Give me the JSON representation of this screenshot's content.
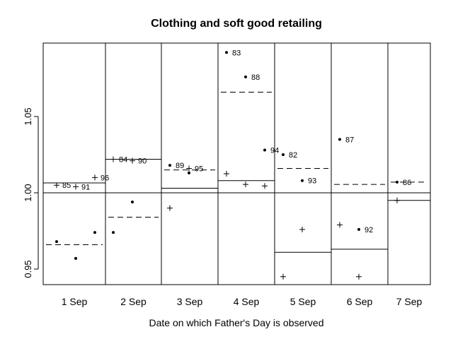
{
  "chart_data": {
    "type": "scatter",
    "title": "Clothing and soft good retailing",
    "xlabel": "Date on which Father's Day is observed",
    "ylabel": "",
    "ylim": [
      0.94,
      1.098
    ],
    "yticks": [
      "0.95",
      "1.00",
      "1.05"
    ],
    "ytick_values": [
      0.95,
      1.0,
      1.05
    ],
    "reference_line": 1.0,
    "grid": false,
    "groups": [
      {
        "label": "1 Sep",
        "dashed_mean": 0.966,
        "solid_mean": 1.0065,
        "points": [
          {
            "slot": 0,
            "marker": "dot",
            "value": 0.968,
            "year": ""
          },
          {
            "slot": 1,
            "marker": "dot",
            "value": 0.957,
            "year": ""
          },
          {
            "slot": 2,
            "marker": "dot",
            "value": 0.974,
            "year": ""
          },
          {
            "slot": 0,
            "marker": "plus",
            "value": 1.005,
            "year": "85"
          },
          {
            "slot": 1,
            "marker": "plus",
            "value": 1.004,
            "year": "91"
          },
          {
            "slot": 2,
            "marker": "plus",
            "value": 1.01,
            "year": "96"
          }
        ]
      },
      {
        "label": "2 Sep",
        "dashed_mean": 0.984,
        "solid_mean": 1.022,
        "points": [
          {
            "slot": 0,
            "marker": "plus",
            "value": 1.022,
            "year": "84"
          },
          {
            "slot": 1,
            "marker": "plus",
            "value": 1.021,
            "year": "90"
          },
          {
            "slot": 0,
            "marker": "dot",
            "value": 0.974,
            "year": ""
          },
          {
            "slot": 1,
            "marker": "dot",
            "value": 0.994,
            "year": ""
          }
        ]
      },
      {
        "label": "3 Sep",
        "dashed_mean": 1.015,
        "solid_mean": 1.003,
        "points": [
          {
            "slot": 0,
            "marker": "dot",
            "value": 1.018,
            "year": "89"
          },
          {
            "slot": 1,
            "marker": "plus",
            "value": 1.016,
            "year": "95"
          },
          {
            "slot": 1,
            "marker": "dot",
            "value": 1.013,
            "year": ""
          },
          {
            "slot": 0,
            "marker": "plus",
            "value": 0.99,
            "year": ""
          }
        ]
      },
      {
        "label": "4 Sep",
        "dashed_mean": 1.066,
        "solid_mean": 1.008,
        "points": [
          {
            "slot": 0,
            "marker": "dot",
            "value": 1.092,
            "year": "83"
          },
          {
            "slot": 1,
            "marker": "dot",
            "value": 1.076,
            "year": "88"
          },
          {
            "slot": 2,
            "marker": "dot",
            "value": 1.028,
            "year": "94"
          },
          {
            "slot": 0,
            "marker": "plus",
            "value": 1.0125,
            "year": ""
          },
          {
            "slot": 1,
            "marker": "plus",
            "value": 1.0055,
            "year": ""
          },
          {
            "slot": 2,
            "marker": "plus",
            "value": 1.0045,
            "year": ""
          }
        ]
      },
      {
        "label": "5 Sep",
        "dashed_mean": 1.016,
        "solid_mean": 0.961,
        "points": [
          {
            "slot": 0,
            "marker": "dot",
            "value": 1.025,
            "year": "82"
          },
          {
            "slot": 1,
            "marker": "dot",
            "value": 1.008,
            "year": "93"
          },
          {
            "slot": 1,
            "marker": "plus",
            "value": 0.976,
            "year": ""
          },
          {
            "slot": 0,
            "marker": "plus",
            "value": 0.945,
            "year": ""
          }
        ]
      },
      {
        "label": "6 Sep",
        "dashed_mean": 1.0055,
        "solid_mean": 0.963,
        "points": [
          {
            "slot": 0,
            "marker": "dot",
            "value": 1.035,
            "year": "87"
          },
          {
            "slot": 1,
            "marker": "dot",
            "value": 0.976,
            "year": "92"
          },
          {
            "slot": 0,
            "marker": "plus",
            "value": 0.979,
            "year": ""
          },
          {
            "slot": 1,
            "marker": "plus",
            "value": 0.945,
            "year": ""
          }
        ]
      },
      {
        "label": "7 Sep",
        "dashed_mean": 1.007,
        "solid_mean": 0.995,
        "points": [
          {
            "slot": 0,
            "marker": "dot",
            "value": 1.007,
            "year": "86"
          },
          {
            "slot": 0,
            "marker": "plus",
            "value": 0.995,
            "year": ""
          }
        ]
      }
    ]
  }
}
